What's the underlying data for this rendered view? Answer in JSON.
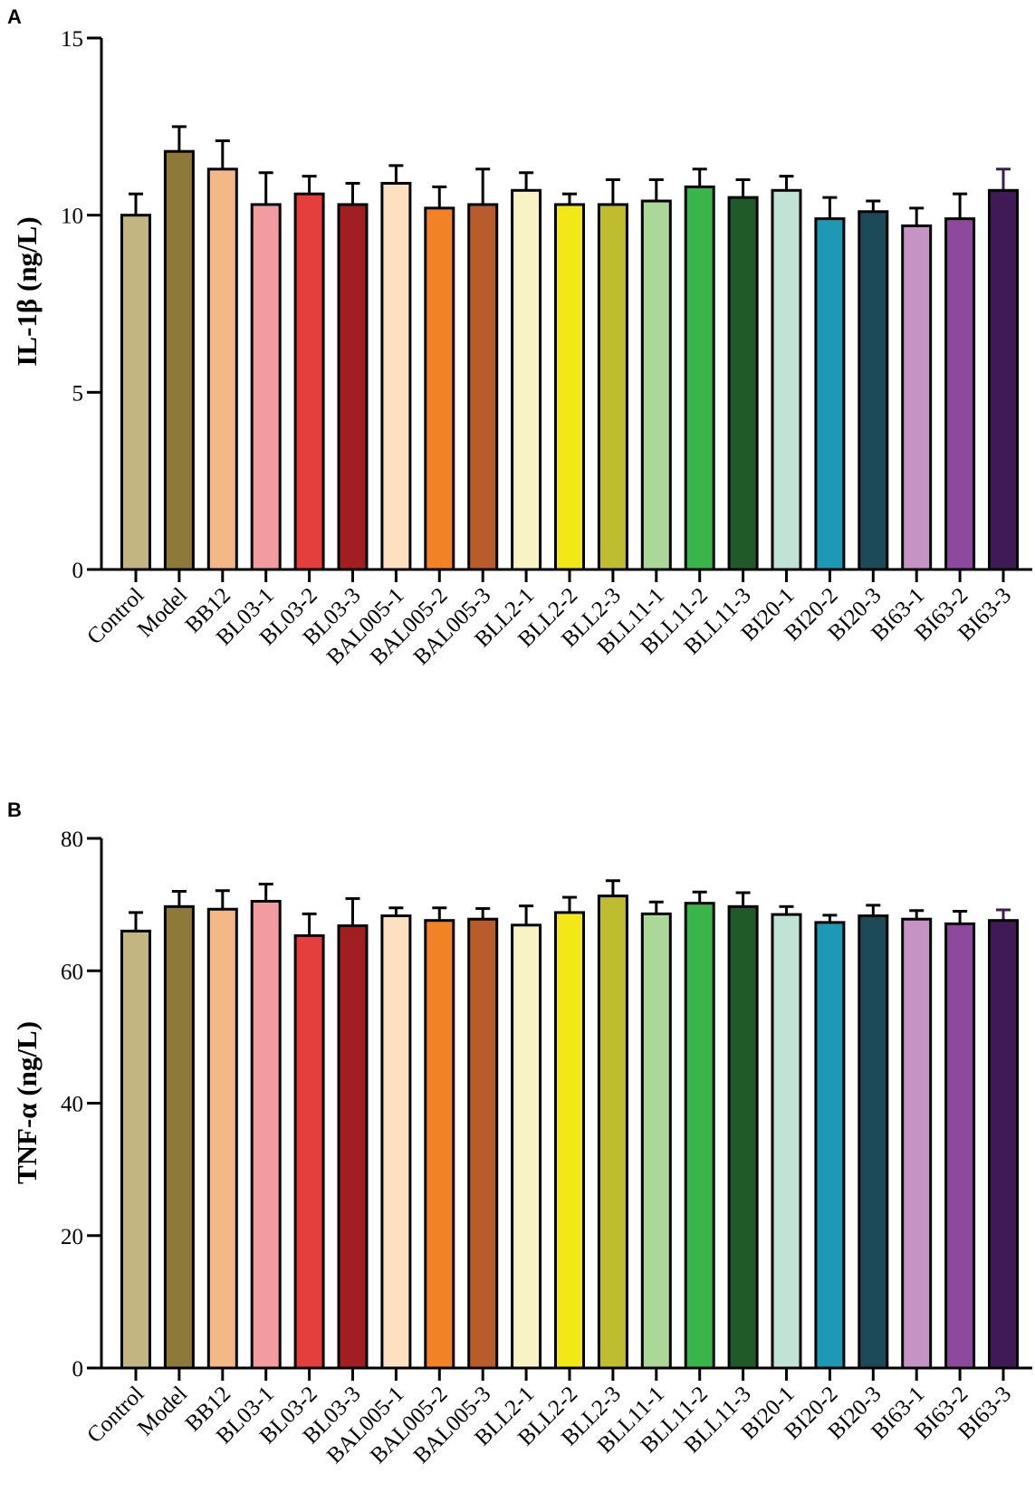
{
  "chart_data": [
    {
      "panel": "A",
      "type": "bar",
      "title": "",
      "xlabel": "",
      "ylabel": "IL-1β (ng/L)",
      "ylim": [
        0,
        15
      ],
      "yticks": [
        0,
        5,
        10,
        15
      ],
      "categories": [
        "Control",
        "Model",
        "BB12",
        "BL03-1",
        "BL03-2",
        "BL03-3",
        "BAL005-1",
        "BAL005-2",
        "BAL005-3",
        "BLL2-1",
        "BLL2-2",
        "BLL2-3",
        "BLL11-1",
        "BLL11-2",
        "BLL11-3",
        "BI20-1",
        "BI20-2",
        "BI20-3",
        "BI63-1",
        "BI63-2",
        "BI63-3"
      ],
      "values": [
        10.0,
        11.8,
        11.3,
        10.3,
        10.6,
        10.3,
        10.9,
        10.2,
        10.3,
        10.7,
        10.3,
        10.3,
        10.4,
        10.8,
        10.5,
        10.7,
        9.9,
        10.1,
        9.7,
        9.9,
        10.7
      ],
      "errors": [
        0.6,
        0.7,
        0.8,
        0.9,
        0.5,
        0.6,
        0.5,
        0.6,
        1.0,
        0.5,
        0.3,
        0.7,
        0.6,
        0.5,
        0.5,
        0.4,
        0.6,
        0.3,
        0.5,
        0.7,
        0.6
      ]
    },
    {
      "panel": "B",
      "type": "bar",
      "title": "",
      "xlabel": "",
      "ylabel": "TNF-α (ng/L)",
      "ylim": [
        0,
        80
      ],
      "yticks": [
        0,
        20,
        40,
        60,
        80
      ],
      "categories": [
        "Control",
        "Model",
        "BB12",
        "BL03-1",
        "BL03-2",
        "BL03-3",
        "BAL005-1",
        "BAL005-2",
        "BAL005-3",
        "BLL2-1",
        "BLL2-2",
        "BLL2-3",
        "BLL11-1",
        "BLL11-2",
        "BLL11-3",
        "BI20-1",
        "BI20-2",
        "BI20-3",
        "BI63-1",
        "BI63-2",
        "BI63-3"
      ],
      "values": [
        66.0,
        69.7,
        69.3,
        70.5,
        65.3,
        66.8,
        68.3,
        67.6,
        67.8,
        66.9,
        68.8,
        71.3,
        68.6,
        70.2,
        69.7,
        68.5,
        67.3,
        68.3,
        67.8,
        67.1,
        67.6
      ],
      "errors": [
        2.8,
        2.3,
        2.8,
        2.6,
        3.3,
        4.1,
        1.2,
        1.9,
        1.6,
        2.9,
        2.3,
        2.3,
        1.8,
        1.7,
        2.1,
        1.2,
        1.1,
        1.6,
        1.3,
        1.9,
        1.6
      ]
    }
  ],
  "colors": [
    "#c2b582",
    "#8d7a3b",
    "#f4b886",
    "#f29ca2",
    "#e63d3d",
    "#a11e21",
    "#fde0bf",
    "#f28226",
    "#b85c2c",
    "#f7f3c2",
    "#f2e818",
    "#bfbd2f",
    "#abd896",
    "#3ab54a",
    "#205a2b",
    "#c1e3d6",
    "#1e99b5",
    "#1c4a59",
    "#c693c5",
    "#8d4a9c",
    "#3f1a55"
  ],
  "error_bar_colors": [
    "#000000",
    "#000000",
    "#000000",
    "#000000",
    "#000000",
    "#000000",
    "#000000",
    "#000000",
    "#000000",
    "#000000",
    "#000000",
    "#000000",
    "#000000",
    "#000000",
    "#000000",
    "#000000",
    "#000000",
    "#000000",
    "#000000",
    "#000000",
    "#3f1a55"
  ]
}
